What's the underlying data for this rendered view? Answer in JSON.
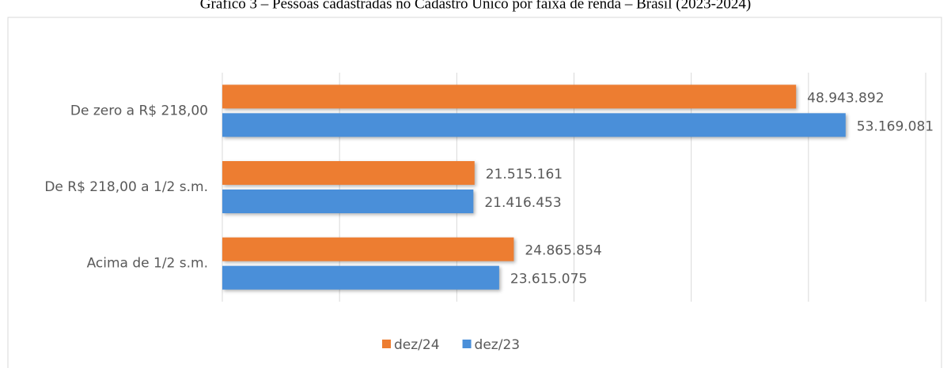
{
  "chart_data": {
    "type": "hbar",
    "title": "Gráfico 3 – Pessoas cadastradas no Cadastro Único por faixa de renda – Brasil (2023-2024)",
    "categories": [
      "De zero a R$ 218,00",
      "De R$ 218,00 a 1/2 s.m.",
      "Acima de 1/2 s.m."
    ],
    "series": [
      {
        "name": "dez/24",
        "color": "#ed7d31",
        "values": [
          48943892,
          21515161,
          24865854
        ],
        "value_labels": [
          "48.943.892",
          "21.515.161",
          "24.865.854"
        ]
      },
      {
        "name": "dez/23",
        "color": "#4a8fd9",
        "values": [
          53169081,
          21416453,
          23615075
        ],
        "value_labels": [
          "53.169.081",
          "21.416.453",
          "23.615.075"
        ]
      }
    ],
    "xlim": [
      0,
      60000000
    ],
    "xticks": [
      0,
      10000000,
      20000000,
      30000000,
      40000000,
      50000000,
      60000000
    ],
    "grid": true,
    "legend": "bottom"
  }
}
